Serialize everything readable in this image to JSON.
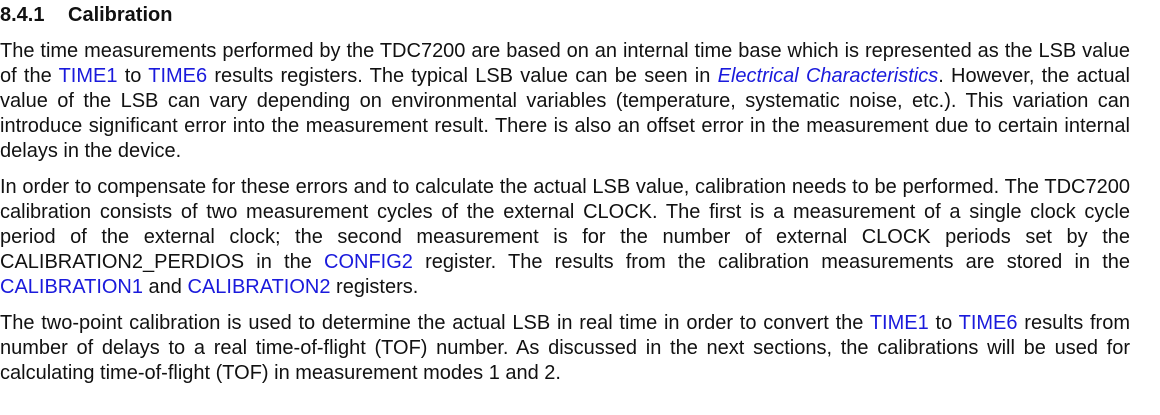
{
  "section": {
    "number": "8.4.1",
    "title": "Calibration"
  },
  "paragraphs": {
    "p1": {
      "t1": "The time measurements performed by the TDC7200 are based on an internal time base which is represented as the LSB value of the ",
      "link1": "TIME1",
      "t2": " to ",
      "link2": "TIME6",
      "t3": " results registers. The typical LSB value can be seen in ",
      "ref1": "Electrical Characteristics",
      "t4": ". However, the actual value of the LSB can vary depending on environmental variables (temperature, systematic noise, etc.). This variation can introduce significant error into the measurement result. There is also an offset error in the measurement due to certain internal delays in the device."
    },
    "p2": {
      "t1": "In order to compensate for these errors and to calculate the actual LSB value, calibration needs to be performed. The TDC7200 calibration consists of two measurement cycles of the external CLOCK. The first is a measurement of a single clock cycle period of the external clock; the second measurement is for the number of external CLOCK periods set by the CALIBRATION2_PERDIOS in the ",
      "link1": "CONFIG2",
      "t2": " register. The results from the calibration measurements are stored in the ",
      "link2": "CALIBRATION1",
      "t3": " and ",
      "link3": "CALIBRATION2",
      "t4": " registers."
    },
    "p3": {
      "t1": "The two-point calibration is used to determine the actual LSB in real time in order to convert the ",
      "link1": "TIME1",
      "t2": " to ",
      "link2": "TIME6",
      "t3": " results from number of delays to a real time-of-flight (TOF) number. As discussed in the next sections, the calibrations will be used for calculating time-of-flight (TOF) in measurement modes 1 and 2."
    }
  },
  "colors": {
    "text": "#111111",
    "link": "#1a1adc"
  }
}
